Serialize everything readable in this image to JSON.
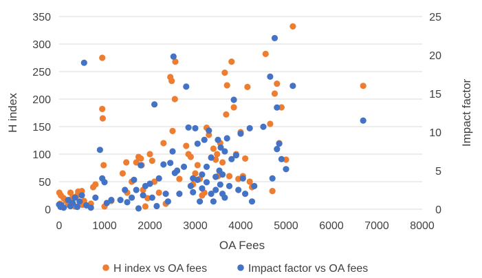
{
  "chart_data": {
    "type": "scatter",
    "xlabel": "OA Fees",
    "ylabel": "H index",
    "y2label": "Impact factor",
    "xlim": [
      0,
      8000
    ],
    "ylim": [
      0,
      350
    ],
    "y2lim": [
      0,
      25
    ],
    "x_ticks": [
      "0",
      "1000",
      "2000",
      "3000",
      "4000",
      "5000",
      "6000",
      "7000",
      "8000"
    ],
    "y_ticks": [
      "0",
      "50",
      "100",
      "150",
      "200",
      "250",
      "300",
      "350"
    ],
    "y2_ticks": [
      "0",
      "5",
      "10",
      "15",
      "20",
      "25"
    ],
    "grid": "horizontal",
    "legend_position": "bottom",
    "series": [
      {
        "name": "H index vs OA fees",
        "axis": "left",
        "color": "#ED7D31",
        "points": [
          [
            5,
            30
          ],
          [
            20,
            10
          ],
          [
            40,
            25
          ],
          [
            60,
            5
          ],
          [
            100,
            20
          ],
          [
            150,
            15
          ],
          [
            200,
            8
          ],
          [
            250,
            30
          ],
          [
            280,
            12
          ],
          [
            300,
            22
          ],
          [
            350,
            5
          ],
          [
            400,
            25
          ],
          [
            420,
            32
          ],
          [
            500,
            33
          ],
          [
            510,
            8
          ],
          [
            550,
            15
          ],
          [
            700,
            10
          ],
          [
            750,
            40
          ],
          [
            800,
            45
          ],
          [
            950,
            275
          ],
          [
            950,
            182
          ],
          [
            960,
            165
          ],
          [
            980,
            80
          ],
          [
            1000,
            5
          ],
          [
            1150,
            15
          ],
          [
            1400,
            65
          ],
          [
            1480,
            85
          ],
          [
            1500,
            30
          ],
          [
            1600,
            50
          ],
          [
            1700,
            85
          ],
          [
            1750,
            95
          ],
          [
            1800,
            92
          ],
          [
            1820,
            80
          ],
          [
            1850,
            35
          ],
          [
            1900,
            5
          ],
          [
            1950,
            20
          ],
          [
            2000,
            100
          ],
          [
            2050,
            88
          ],
          [
            2100,
            50
          ],
          [
            2200,
            30
          ],
          [
            2300,
            120
          ],
          [
            2350,
            10
          ],
          [
            2450,
            240
          ],
          [
            2480,
            233
          ],
          [
            2500,
            142
          ],
          [
            2550,
            200
          ],
          [
            2560,
            268
          ],
          [
            2600,
            70
          ],
          [
            2650,
            55
          ],
          [
            2800,
            115
          ],
          [
            2850,
            100
          ],
          [
            2900,
            95
          ],
          [
            2950,
            45
          ],
          [
            3000,
            65
          ],
          [
            3050,
            80
          ],
          [
            3100,
            55
          ],
          [
            3150,
            25
          ],
          [
            3200,
            30
          ],
          [
            3250,
            148
          ],
          [
            3300,
            135
          ],
          [
            3400,
            110
          ],
          [
            3450,
            90
          ],
          [
            3480,
            100
          ],
          [
            3500,
            60
          ],
          [
            3550,
            120
          ],
          [
            3600,
            85
          ],
          [
            3650,
            248
          ],
          [
            3680,
            172
          ],
          [
            3700,
            225
          ],
          [
            3750,
            60
          ],
          [
            3800,
            268
          ],
          [
            3850,
            185
          ],
          [
            3900,
            100
          ],
          [
            3950,
            55
          ],
          [
            4000,
            140
          ],
          [
            4050,
            60
          ],
          [
            4100,
            92
          ],
          [
            4150,
            222
          ],
          [
            4200,
            50
          ],
          [
            4250,
            40
          ],
          [
            4550,
            282
          ],
          [
            4650,
            155
          ],
          [
            4700,
            33
          ],
          [
            4750,
            210
          ],
          [
            4800,
            228
          ],
          [
            4850,
            120
          ],
          [
            4900,
            185
          ],
          [
            5000,
            90
          ],
          [
            5150,
            332
          ],
          [
            6700,
            224
          ]
        ]
      },
      {
        "name": "Impact factor vs OA fees",
        "axis": "right",
        "color": "#4472C4",
        "points": [
          [
            0,
            0.6
          ],
          [
            30,
            0.3
          ],
          [
            50,
            0.5
          ],
          [
            100,
            0.2
          ],
          [
            200,
            1.2
          ],
          [
            250,
            0.4
          ],
          [
            300,
            0.8
          ],
          [
            350,
            1.5
          ],
          [
            400,
            0.3
          ],
          [
            450,
            1.0
          ],
          [
            500,
            1.8
          ],
          [
            550,
            19.0
          ],
          [
            600,
            0.5
          ],
          [
            700,
            0.2
          ],
          [
            800,
            1.5
          ],
          [
            900,
            7.7
          ],
          [
            950,
            4.0
          ],
          [
            1000,
            3.5
          ],
          [
            1050,
            0.8
          ],
          [
            1150,
            1.2
          ],
          [
            1350,
            1.2
          ],
          [
            1450,
            2.5
          ],
          [
            1500,
            0.9
          ],
          [
            1600,
            1.5
          ],
          [
            1650,
            3.8
          ],
          [
            1700,
            2.5
          ],
          [
            1750,
            0.1
          ],
          [
            1800,
            5.7
          ],
          [
            1850,
            1.8
          ],
          [
            1900,
            3.0
          ],
          [
            2000,
            3.3
          ],
          [
            2050,
            1.5
          ],
          [
            2100,
            13.6
          ],
          [
            2150,
            0.4
          ],
          [
            2200,
            4.0
          ],
          [
            2300,
            5.8
          ],
          [
            2350,
            2.0
          ],
          [
            2400,
            1.0
          ],
          [
            2450,
            6.0
          ],
          [
            2500,
            7.5
          ],
          [
            2520,
            19.8
          ],
          [
            2550,
            4.7
          ],
          [
            2600,
            5.0
          ],
          [
            2650,
            2.0
          ],
          [
            2750,
            5.5
          ],
          [
            2800,
            15.9
          ],
          [
            2850,
            10.6
          ],
          [
            2900,
            3.0
          ],
          [
            2950,
            4.0
          ],
          [
            3000,
            10.5
          ],
          [
            3050,
            8.5
          ],
          [
            3100,
            1.0
          ],
          [
            3150,
            4.5
          ],
          [
            3200,
            9.0
          ],
          [
            3250,
            3.5
          ],
          [
            3300,
            10.2
          ],
          [
            3350,
            2.0
          ],
          [
            3400,
            1.0
          ],
          [
            3450,
            2.5
          ],
          [
            3500,
            9.0
          ],
          [
            3530,
            5.0
          ],
          [
            3560,
            8.0
          ],
          [
            3600,
            4.5
          ],
          [
            3650,
            7.5
          ],
          [
            3700,
            9.2
          ],
          [
            3750,
            3.0
          ],
          [
            3800,
            6.5
          ],
          [
            3850,
            14.2
          ],
          [
            3900,
            7.0
          ],
          [
            3950,
            2.5
          ],
          [
            4000,
            9.8
          ],
          [
            4050,
            4.0
          ],
          [
            4100,
            2.0
          ],
          [
            4200,
            10.5
          ],
          [
            4250,
            1.0
          ],
          [
            4300,
            3.0
          ],
          [
            4500,
            10.7
          ],
          [
            4650,
            17.2
          ],
          [
            4750,
            22.2
          ],
          [
            4800,
            13.2
          ],
          [
            4850,
            8.5
          ],
          [
            4900,
            6.5
          ],
          [
            5000,
            5.2
          ],
          [
            5150,
            16.0
          ],
          [
            6700,
            11.5
          ],
          [
            4700,
            4.0
          ],
          [
            4800,
            7.8
          ],
          [
            3600,
            2.0
          ],
          [
            3450,
            4.2
          ],
          [
            3350,
            6.7
          ],
          [
            3550,
            3.2
          ],
          [
            3650,
            1.5
          ],
          [
            2950,
            2.2
          ],
          [
            3050,
            3.8
          ],
          [
            3150,
            2.7
          ],
          [
            3250,
            5.5
          ]
        ]
      }
    ]
  }
}
